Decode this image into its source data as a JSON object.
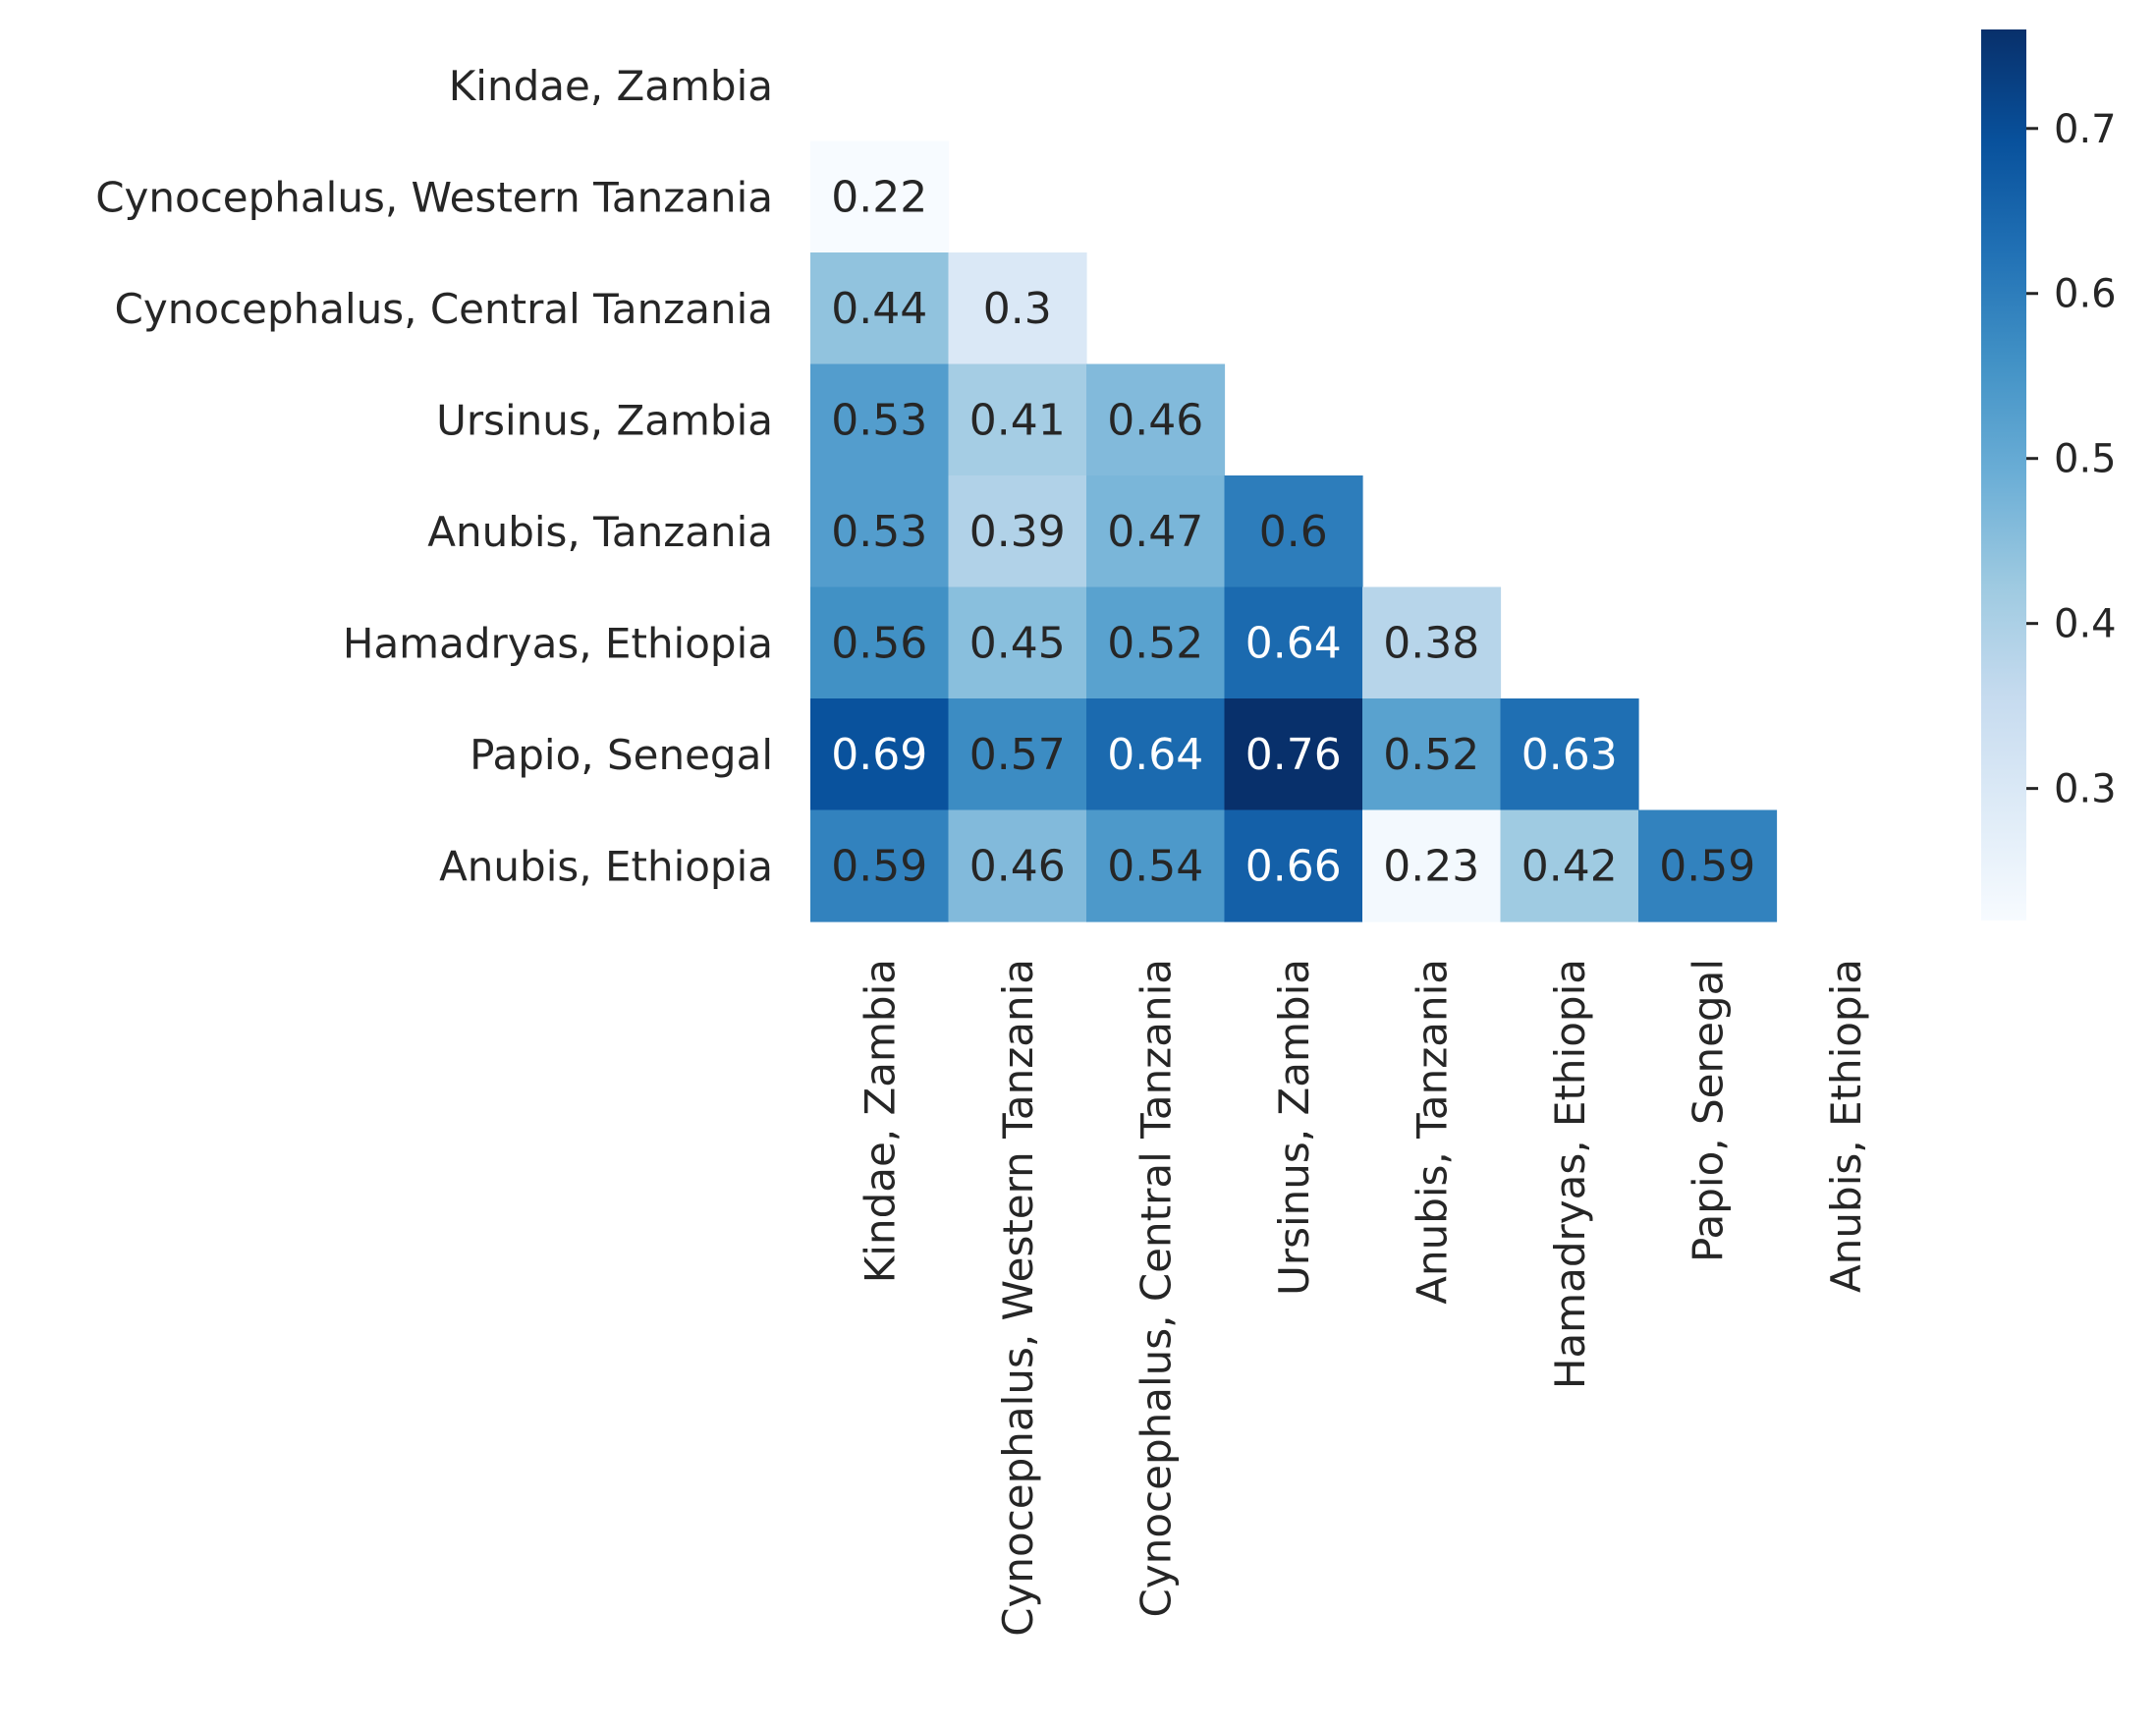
{
  "chart_data": {
    "type": "heatmap",
    "title": "",
    "xlabel": "",
    "ylabel": "",
    "rows": [
      "Kindae, Zambia",
      "Cynocephalus, Western Tanzania",
      "Cynocephalus, Central Tanzania",
      "Ursinus, Zambia",
      "Anubis, Tanzania",
      "Hamadryas, Ethiopia",
      "Papio, Senegal",
      "Anubis, Ethiopia"
    ],
    "columns": [
      "Kindae, Zambia",
      "Cynocephalus, Western Tanzania",
      "Cynocephalus, Central Tanzania",
      "Ursinus, Zambia",
      "Anubis, Tanzania",
      "Hamadryas, Ethiopia",
      "Papio, Senegal",
      "Anubis, Ethiopia"
    ],
    "mask": "upper-triangle-including-diagonal",
    "values": [
      [
        null,
        null,
        null,
        null,
        null,
        null,
        null,
        null
      ],
      [
        0.22,
        null,
        null,
        null,
        null,
        null,
        null,
        null
      ],
      [
        0.44,
        0.3,
        null,
        null,
        null,
        null,
        null,
        null
      ],
      [
        0.53,
        0.41,
        0.46,
        null,
        null,
        null,
        null,
        null
      ],
      [
        0.53,
        0.39,
        0.47,
        0.6,
        null,
        null,
        null,
        null
      ],
      [
        0.56,
        0.45,
        0.52,
        0.64,
        0.38,
        null,
        null,
        null
      ],
      [
        0.69,
        0.57,
        0.64,
        0.76,
        0.52,
        0.63,
        null,
        null
      ],
      [
        0.59,
        0.46,
        0.54,
        0.66,
        0.23,
        0.42,
        0.59,
        null
      ]
    ],
    "colormap": "Blues",
    "color_range": [
      0.22,
      0.76
    ],
    "colorbar": {
      "position": "right",
      "ticks": [
        0.3,
        0.4,
        0.5,
        0.6,
        0.7
      ],
      "tick_labels": [
        "0.3",
        "0.4",
        "0.5",
        "0.6",
        "0.7"
      ]
    },
    "annotations": true
  }
}
